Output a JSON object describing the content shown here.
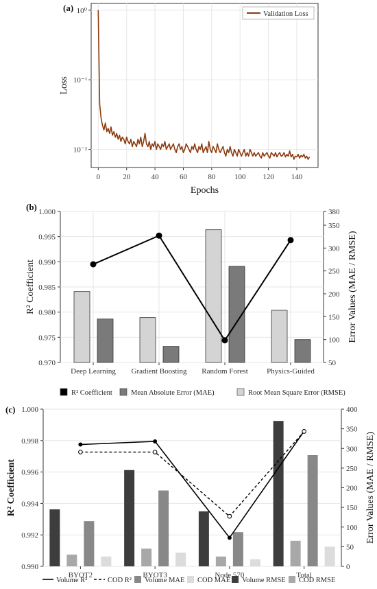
{
  "chart_data": [
    {
      "panel": "(a)",
      "type": "line",
      "xlabel": "Epochs",
      "ylabel": "Loss",
      "yscale": "log",
      "xlim": [
        -5,
        155
      ],
      "ylim": [
        0.0055,
        1.25
      ],
      "xticks": [
        0,
        20,
        40,
        60,
        80,
        100,
        120,
        140
      ],
      "ytick_labels": [
        "10⁰",
        "10⁻¹",
        "10⁻²"
      ],
      "ytick_values": [
        1,
        0.1,
        0.01
      ],
      "grid": true,
      "legend_position": "top-right",
      "series": [
        {
          "name": "Validation Loss",
          "color": "#8B3A0E",
          "x": [
            0,
            1,
            2,
            3,
            4,
            5,
            6,
            7,
            8,
            9,
            10,
            11,
            12,
            13,
            14,
            15,
            16,
            17,
            18,
            19,
            20,
            21,
            22,
            23,
            24,
            25,
            26,
            27,
            28,
            29,
            30,
            31,
            32,
            33,
            34,
            35,
            36,
            37,
            38,
            39,
            40,
            41,
            42,
            43,
            44,
            45,
            46,
            47,
            48,
            49,
            50,
            51,
            52,
            53,
            54,
            55,
            56,
            57,
            58,
            59,
            60,
            61,
            62,
            63,
            64,
            65,
            66,
            67,
            68,
            69,
            70,
            71,
            72,
            73,
            74,
            75,
            76,
            77,
            78,
            79,
            80,
            81,
            82,
            83,
            84,
            85,
            86,
            87,
            88,
            89,
            90,
            91,
            92,
            93,
            94,
            95,
            96,
            97,
            98,
            99,
            100,
            101,
            102,
            103,
            104,
            105,
            106,
            107,
            108,
            109,
            110,
            111,
            112,
            113,
            114,
            115,
            116,
            117,
            118,
            119,
            120,
            121,
            122,
            123,
            124,
            125,
            126,
            127,
            128,
            129,
            130,
            131,
            132,
            133,
            134,
            135,
            136,
            137,
            138,
            139,
            140,
            141,
            142,
            143,
            144,
            145,
            146,
            147,
            148,
            149
          ],
          "y": [
            1.0,
            0.045,
            0.028,
            0.022,
            0.019,
            0.024,
            0.018,
            0.02,
            0.017,
            0.021,
            0.016,
            0.018,
            0.015,
            0.017,
            0.014,
            0.016,
            0.013,
            0.015,
            0.014,
            0.012,
            0.015,
            0.013,
            0.012,
            0.014,
            0.011,
            0.013,
            0.012,
            0.011,
            0.014,
            0.012,
            0.015,
            0.011,
            0.013,
            0.017,
            0.012,
            0.011,
            0.013,
            0.01,
            0.012,
            0.011,
            0.013,
            0.01,
            0.012,
            0.011,
            0.01,
            0.012,
            0.011,
            0.013,
            0.01,
            0.011,
            0.012,
            0.01,
            0.011,
            0.012,
            0.01,
            0.009,
            0.011,
            0.012,
            0.01,
            0.011,
            0.009,
            0.01,
            0.012,
            0.011,
            0.01,
            0.009,
            0.011,
            0.01,
            0.012,
            0.01,
            0.009,
            0.011,
            0.01,
            0.012,
            0.009,
            0.01,
            0.011,
            0.009,
            0.013,
            0.01,
            0.009,
            0.011,
            0.01,
            0.009,
            0.012,
            0.01,
            0.009,
            0.01,
            0.011,
            0.009,
            0.008,
            0.01,
            0.009,
            0.011,
            0.009,
            0.008,
            0.01,
            0.009,
            0.008,
            0.01,
            0.009,
            0.008,
            0.009,
            0.01,
            0.008,
            0.009,
            0.008,
            0.01,
            0.009,
            0.008,
            0.009,
            0.008,
            0.0085,
            0.009,
            0.008,
            0.0075,
            0.009,
            0.008,
            0.0085,
            0.009,
            0.008,
            0.0075,
            0.009,
            0.0085,
            0.008,
            0.009,
            0.0078,
            0.0085,
            0.009,
            0.008,
            0.0082,
            0.009,
            0.0078,
            0.0085,
            0.008,
            0.0095,
            0.0078,
            0.0085,
            0.0072,
            0.008,
            0.0078,
            0.0085,
            0.0075,
            0.0082,
            0.0078,
            0.0085,
            0.0075,
            0.008,
            0.0072,
            0.0078
          ]
        }
      ]
    },
    {
      "panel": "(b)",
      "type": "bar",
      "categories": [
        "Deep Learning",
        "Gradient Boosting",
        "Random Forest",
        "Physics-Guided"
      ],
      "ylabel": "R² Coefficient",
      "y2label": "Error Values (MAE / RMSE)",
      "ylim": [
        0.97,
        1.0
      ],
      "yticks": [
        "0.970",
        "0.975",
        "0.980",
        "0.985",
        "0.990",
        "0.995",
        "1.000"
      ],
      "y2lim": [
        50,
        380
      ],
      "y2ticks": [
        50,
        100,
        150,
        200,
        250,
        300,
        350,
        380
      ],
      "legend_position": "bottom",
      "series": [
        {
          "name": "R² Coefficient",
          "kind": "line",
          "axis": "left",
          "color": "#000000",
          "values": [
            0.9895,
            0.9952,
            0.9744,
            0.9943
          ]
        },
        {
          "name": "Mean Absolute Error (MAE)",
          "kind": "bar",
          "axis": "right",
          "color": "#7a7a7a",
          "values": [
            145,
            85,
            260,
            100
          ]
        },
        {
          "name": "Root Mean Square Error (RMSE)",
          "kind": "bar",
          "axis": "right",
          "color": "#d4d4d4",
          "values": [
            205,
            148,
            340,
            164
          ]
        }
      ],
      "legend_order": [
        "R² Coefficient",
        "Mean Absolute Error (MAE)",
        "Root Mean Square Error (RMSE)"
      ]
    },
    {
      "panel": "(c)",
      "type": "bar",
      "categories": [
        "BYOT2",
        "BYOT3",
        "Node 570",
        "Total"
      ],
      "ylabel": "R² Coefficient",
      "y2label": "Error Values (MAE / RMSE)",
      "ylim": [
        0.99,
        1.0
      ],
      "yticks": [
        "0.990",
        "0.992",
        "0.994",
        "0.996",
        "0.998",
        "1.000"
      ],
      "y2lim": [
        0,
        400
      ],
      "y2ticks": [
        0,
        50,
        100,
        150,
        200,
        250,
        300,
        350,
        400
      ],
      "legend_position": "bottom",
      "series": [
        {
          "name": "Volume R²",
          "kind": "line",
          "axis": "left",
          "style": "solid",
          "color": "#000000",
          "values": [
            0.99775,
            0.99795,
            0.99182,
            0.9986
          ]
        },
        {
          "name": "COD R²",
          "kind": "line",
          "axis": "left",
          "style": "dashed",
          "color": "#000000",
          "values": [
            0.99727,
            0.99727,
            0.99318,
            0.99858
          ]
        },
        {
          "name": "Volume RMSE",
          "kind": "bar",
          "axis": "right",
          "color": "#3d3d3d",
          "values": [
            145,
            245,
            140,
            370
          ]
        },
        {
          "name": "COD RMSE",
          "kind": "bar",
          "axis": "right",
          "color": "#a8a8a8",
          "values": [
            30,
            45,
            25,
            65
          ]
        },
        {
          "name": "Volume MAE",
          "kind": "bar",
          "axis": "right",
          "color": "#888888",
          "values": [
            115,
            193,
            87,
            283
          ]
        },
        {
          "name": "COD MAE",
          "kind": "bar",
          "axis": "right",
          "color": "#dcdcdc",
          "values": [
            25,
            35,
            18,
            50
          ]
        }
      ],
      "legend_order": [
        "Volume R²",
        "COD R²",
        "Volume MAE",
        "COD MAE",
        "Volume RMSE",
        "COD RMSE"
      ]
    }
  ]
}
